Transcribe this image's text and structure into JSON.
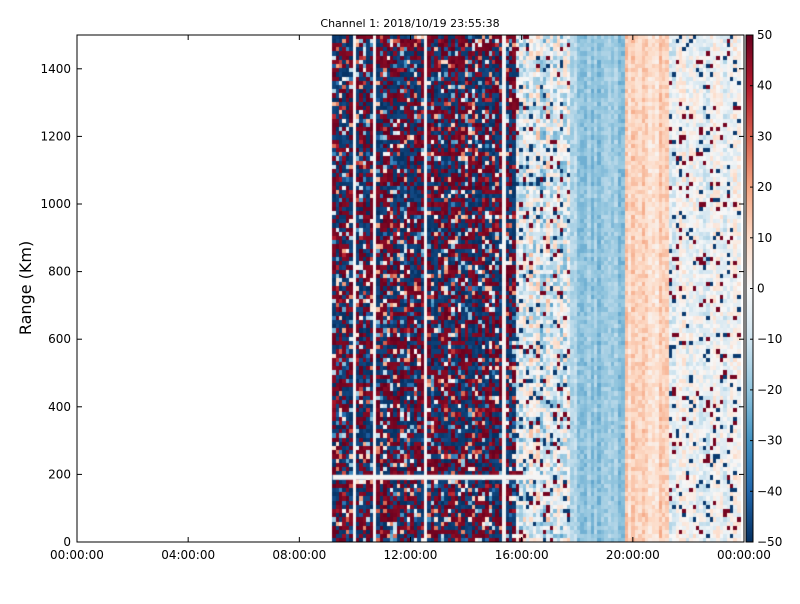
{
  "chart_data": {
    "type": "heatmap",
    "title": "Channel 1: 2018/10/19 23:55:38",
    "xlabel": "",
    "ylabel": "Range (Km)",
    "xlim": [
      0,
      24
    ],
    "ylim": [
      0,
      1500
    ],
    "x_ticks": [
      0,
      4,
      8,
      12,
      16,
      20,
      24
    ],
    "x_tick_labels": [
      "00:00:00",
      "04:00:00",
      "08:00:00",
      "12:00:00",
      "16:00:00",
      "20:00:00",
      "00:00:00"
    ],
    "y_ticks": [
      0,
      200,
      400,
      600,
      800,
      1000,
      1200,
      1400
    ],
    "y_tick_labels": [
      "0",
      "200",
      "400",
      "600",
      "800",
      "1000",
      "1200",
      "1400"
    ],
    "colorbar": {
      "min": -50,
      "max": 50,
      "ticks": [
        50,
        40,
        30,
        20,
        10,
        0,
        -10,
        -20,
        -30,
        -40,
        -50
      ],
      "tick_labels": [
        "50",
        "40",
        "30",
        "20",
        "10",
        "0",
        "−10",
        "−20",
        "−30",
        "−40",
        "−50"
      ],
      "colormap": "RdBu_r",
      "stops": [
        "#053061",
        "#2166ac",
        "#4393c3",
        "#92c5de",
        "#d1e5f0",
        "#f7f7f7",
        "#fddbc7",
        "#f4a582",
        "#d6604d",
        "#b2182b",
        "#67001f"
      ]
    },
    "grid": false,
    "data_start_hour": 9.2,
    "regions": [
      {
        "hours": [
          0,
          9.2
        ],
        "description": "no data"
      },
      {
        "hours": [
          9.2,
          15.8
        ],
        "pattern": "noise",
        "mean": 0,
        "spread": 50
      },
      {
        "hours": [
          15.8,
          17.8
        ],
        "pattern": "mixed",
        "mean": -5,
        "spread": 35
      },
      {
        "hours": [
          17.8,
          19.7
        ],
        "pattern": "smooth",
        "mean": -18,
        "spread": 8
      },
      {
        "hours": [
          19.7,
          21.3
        ],
        "pattern": "smooth",
        "mean": 10,
        "spread": 10
      },
      {
        "hours": [
          21.3,
          23.9
        ],
        "pattern": "mixed",
        "mean": -2,
        "spread": 18
      }
    ]
  }
}
